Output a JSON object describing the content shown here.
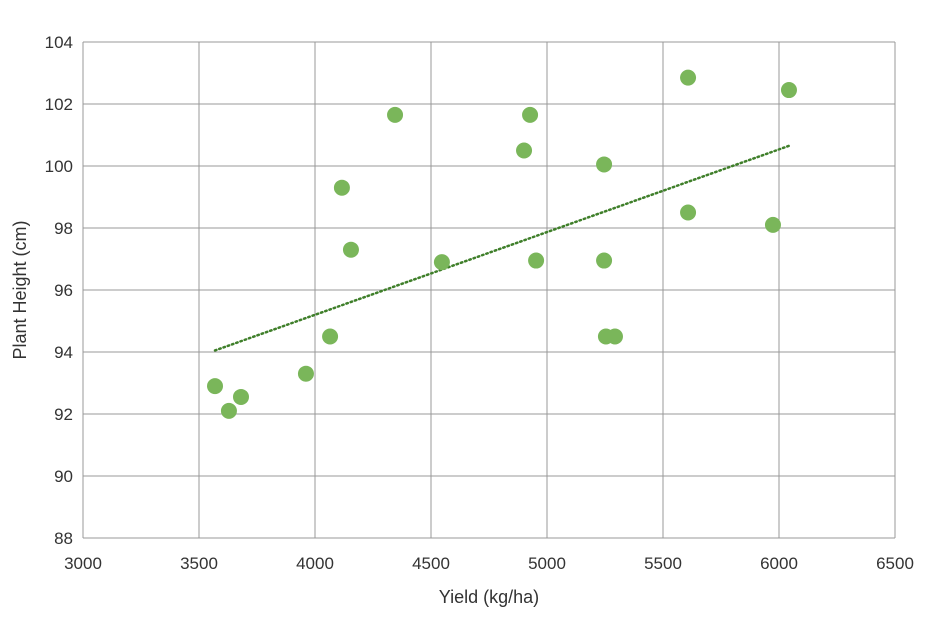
{
  "chart_data": {
    "type": "scatter",
    "title": "",
    "xlabel": "Yield (kg/ha)",
    "ylabel": "Plant Height (cm)",
    "xlim": [
      3000,
      6500
    ],
    "ylim": [
      88,
      104
    ],
    "xticks": [
      3000,
      3500,
      4000,
      4500,
      5000,
      5500,
      6000,
      6500
    ],
    "yticks": [
      88,
      90,
      92,
      94,
      96,
      98,
      100,
      102,
      104
    ],
    "grid": true,
    "point_color": "#7ab65a",
    "trend_color": "#3f7f2a",
    "points": [
      {
        "x": 3569,
        "y": 92.9
      },
      {
        "x": 3629,
        "y": 92.1
      },
      {
        "x": 3681,
        "y": 92.55
      },
      {
        "x": 3961,
        "y": 93.3
      },
      {
        "x": 4065,
        "y": 94.5
      },
      {
        "x": 4116,
        "y": 99.3
      },
      {
        "x": 4155,
        "y": 97.3
      },
      {
        "x": 4345,
        "y": 101.65
      },
      {
        "x": 4547,
        "y": 96.9
      },
      {
        "x": 4901,
        "y": 100.5
      },
      {
        "x": 4927,
        "y": 101.65
      },
      {
        "x": 4953,
        "y": 96.95
      },
      {
        "x": 5246,
        "y": 100.05
      },
      {
        "x": 5246,
        "y": 96.95
      },
      {
        "x": 5254,
        "y": 94.5
      },
      {
        "x": 5293,
        "y": 94.5
      },
      {
        "x": 5608,
        "y": 102.85
      },
      {
        "x": 5608,
        "y": 98.5
      },
      {
        "x": 5974,
        "y": 98.1
      },
      {
        "x": 6043,
        "y": 102.45
      }
    ],
    "trendline": {
      "type": "linear",
      "x": [
        3569,
        6043
      ],
      "y": [
        94.05,
        100.65
      ],
      "style": "dotted"
    }
  }
}
